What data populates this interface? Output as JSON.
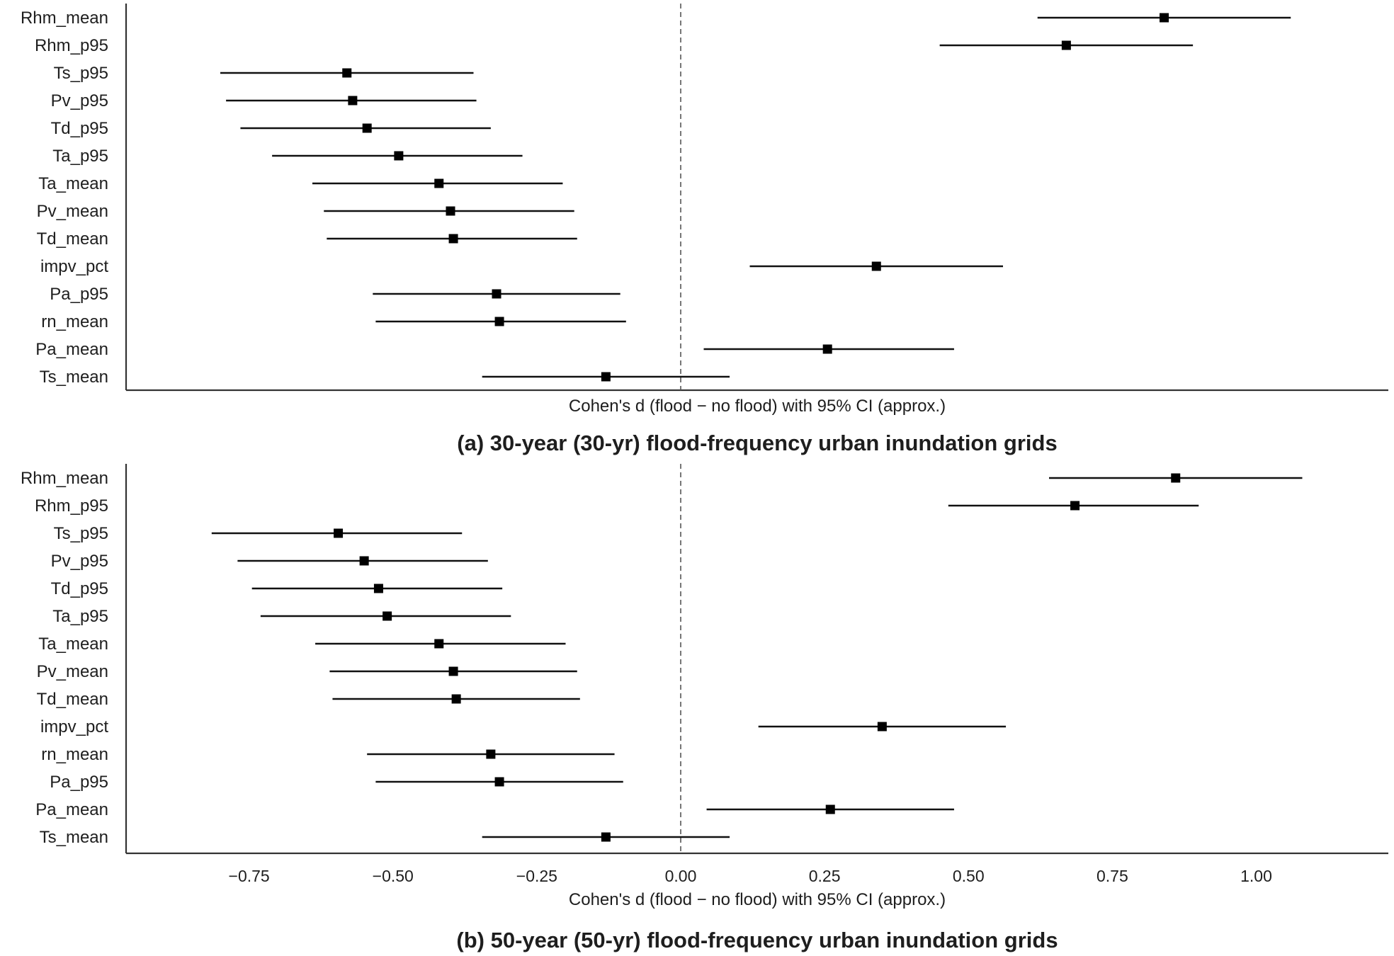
{
  "chart_data": [
    {
      "type": "forest",
      "caption": "(a) 30-year (30-yr) flood-frequency urban inundation grids",
      "xlabel": "Cohen's d (flood − no flood) with 95% CI (approx.)",
      "xlim": [
        -0.97,
        1.22
      ],
      "xticks": [],
      "reference_line": 0.0,
      "grid": false,
      "marker": "square",
      "series": [
        {
          "label": "Rhm_mean",
          "d": 0.84,
          "ci": [
            0.62,
            1.06
          ]
        },
        {
          "label": "Rhm_p95",
          "d": 0.67,
          "ci": [
            0.45,
            0.89
          ]
        },
        {
          "label": "Ts_p95",
          "d": -0.58,
          "ci": [
            -0.8,
            -0.36
          ]
        },
        {
          "label": "Pv_p95",
          "d": -0.57,
          "ci": [
            -0.79,
            -0.355
          ]
        },
        {
          "label": "Td_p95",
          "d": -0.545,
          "ci": [
            -0.765,
            -0.33
          ]
        },
        {
          "label": "Ta_p95",
          "d": -0.49,
          "ci": [
            -0.71,
            -0.275
          ]
        },
        {
          "label": "Ta_mean",
          "d": -0.42,
          "ci": [
            -0.64,
            -0.205
          ]
        },
        {
          "label": "Pv_mean",
          "d": -0.4,
          "ci": [
            -0.62,
            -0.185
          ]
        },
        {
          "label": "Td_mean",
          "d": -0.395,
          "ci": [
            -0.615,
            -0.18
          ]
        },
        {
          "label": "impv_pct",
          "d": 0.34,
          "ci": [
            0.12,
            0.56
          ]
        },
        {
          "label": "Pa_p95",
          "d": -0.32,
          "ci": [
            -0.535,
            -0.105
          ]
        },
        {
          "label": "rn_mean",
          "d": -0.315,
          "ci": [
            -0.53,
            -0.095
          ]
        },
        {
          "label": "Pa_mean",
          "d": 0.255,
          "ci": [
            0.04,
            0.475
          ]
        },
        {
          "label": "Ts_mean",
          "d": -0.13,
          "ci": [
            -0.345,
            0.085
          ]
        }
      ]
    },
    {
      "type": "forest",
      "caption": "(b) 50-year (50-yr) flood-frequency urban inundation grids",
      "xlabel": "Cohen's d (flood − no flood) with 95% CI (approx.)",
      "xlim": [
        -0.97,
        1.22
      ],
      "xticks": [
        "−0.75",
        "−0.50",
        "−0.25",
        "0.00",
        "0.25",
        "0.50",
        "0.75",
        "1.00"
      ],
      "xtick_values": [
        -0.75,
        -0.5,
        -0.25,
        0.0,
        0.25,
        0.5,
        0.75,
        1.0
      ],
      "reference_line": 0.0,
      "grid": false,
      "marker": "square",
      "series": [
        {
          "label": "Rhm_mean",
          "d": 0.86,
          "ci": [
            0.64,
            1.08
          ]
        },
        {
          "label": "Rhm_p95",
          "d": 0.685,
          "ci": [
            0.465,
            0.9
          ]
        },
        {
          "label": "Ts_p95",
          "d": -0.595,
          "ci": [
            -0.815,
            -0.38
          ]
        },
        {
          "label": "Pv_p95",
          "d": -0.55,
          "ci": [
            -0.77,
            -0.335
          ]
        },
        {
          "label": "Td_p95",
          "d": -0.525,
          "ci": [
            -0.745,
            -0.31
          ]
        },
        {
          "label": "Ta_p95",
          "d": -0.51,
          "ci": [
            -0.73,
            -0.295
          ]
        },
        {
          "label": "Ta_mean",
          "d": -0.42,
          "ci": [
            -0.635,
            -0.2
          ]
        },
        {
          "label": "Pv_mean",
          "d": -0.395,
          "ci": [
            -0.61,
            -0.18
          ]
        },
        {
          "label": "Td_mean",
          "d": -0.39,
          "ci": [
            -0.605,
            -0.175
          ]
        },
        {
          "label": "impv_pct",
          "d": 0.35,
          "ci": [
            0.135,
            0.565
          ]
        },
        {
          "label": "rn_mean",
          "d": -0.33,
          "ci": [
            -0.545,
            -0.115
          ]
        },
        {
          "label": "Pa_p95",
          "d": -0.315,
          "ci": [
            -0.53,
            -0.1
          ]
        },
        {
          "label": "Pa_mean",
          "d": 0.26,
          "ci": [
            0.045,
            0.475
          ]
        },
        {
          "label": "Ts_mean",
          "d": -0.13,
          "ci": [
            -0.345,
            0.085
          ]
        }
      ]
    }
  ]
}
